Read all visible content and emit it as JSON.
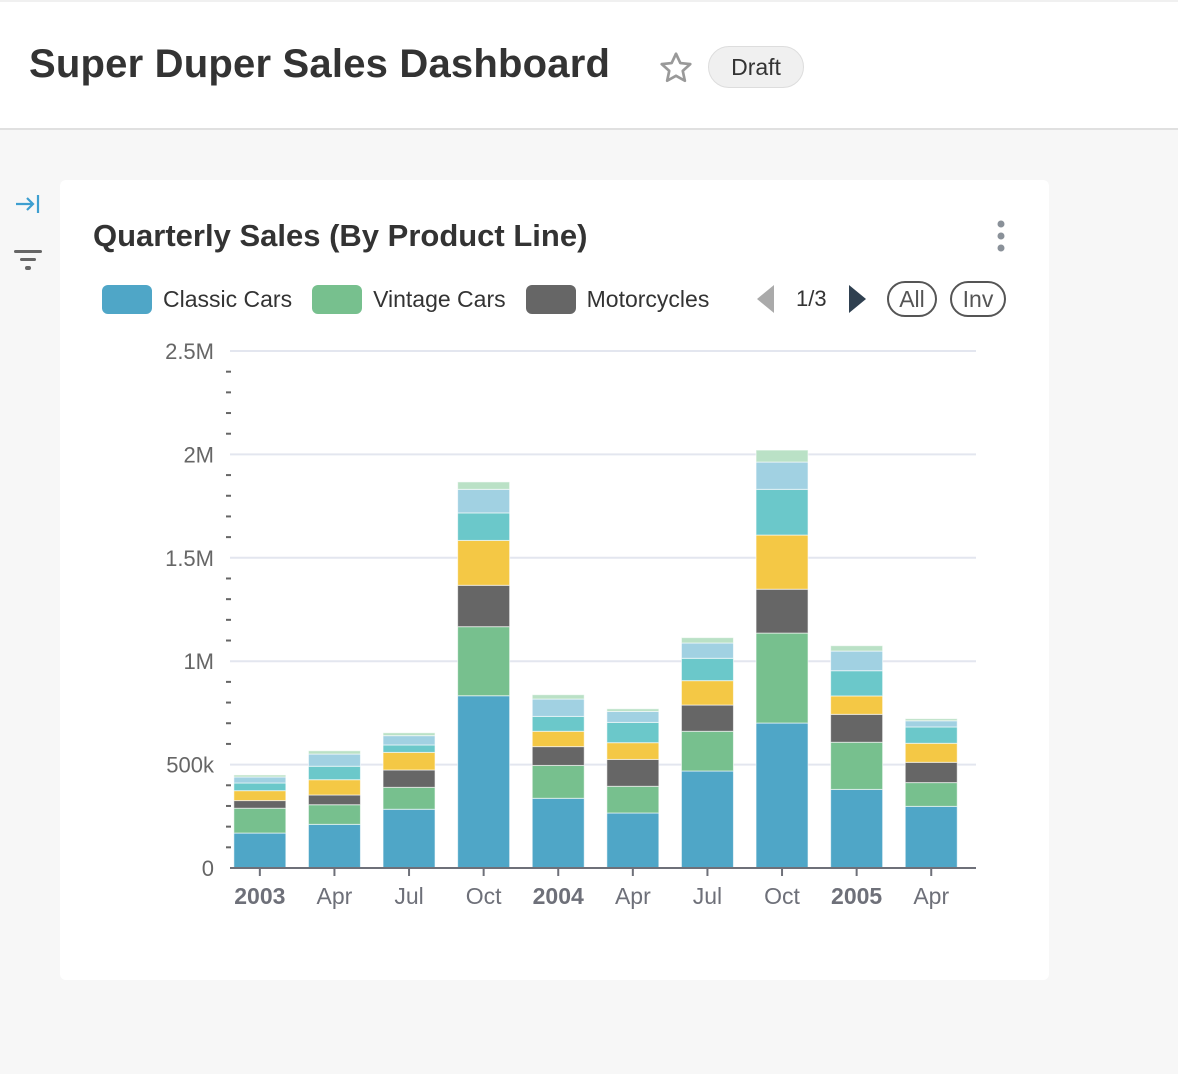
{
  "header": {
    "title": "Super Duper Sales Dashboard",
    "status_badge": "Draft",
    "star_icon": "star-outline-icon"
  },
  "sidebar": {
    "expand_icon": "expand-right-icon",
    "filter_icon": "filter-icon"
  },
  "chart_card": {
    "title": "Quarterly Sales (By Product Line)",
    "menu_icon": "kebab-menu-icon",
    "legend": {
      "items": [
        {
          "label": "Classic Cars",
          "color": "#4FA6C7"
        },
        {
          "label": "Vintage Cars",
          "color": "#77C08E"
        },
        {
          "label": "Motorcycles",
          "color": "#666666"
        }
      ],
      "page": "1/3",
      "all_label": "All",
      "inv_label": "Inv"
    }
  },
  "chart_data": {
    "type": "bar",
    "stacked": true,
    "title": "Quarterly Sales (By Product Line)",
    "xlabel": "",
    "ylabel": "",
    "categories": [
      "2003",
      "Apr",
      "Jul",
      "Oct",
      "2004",
      "Apr",
      "Jul",
      "Oct",
      "2005",
      "Apr"
    ],
    "bold_categories": [
      "2003",
      "2004",
      "2005"
    ],
    "y_ticks": [
      "0",
      "500k",
      "1M",
      "1.5M",
      "2M",
      "2.5M"
    ],
    "ylim": [
      0,
      2500000
    ],
    "grid": true,
    "legend_position": "top",
    "series": [
      {
        "name": "Classic Cars",
        "color": "#4FA6C7",
        "values": [
          169000,
          211000,
          284000,
          833000,
          337000,
          266000,
          469000,
          701000,
          380000,
          298000
        ]
      },
      {
        "name": "Vintage Cars",
        "color": "#77C08E",
        "values": [
          120000,
          95000,
          106000,
          334000,
          159000,
          129000,
          192000,
          435000,
          228000,
          115000
        ]
      },
      {
        "name": "Motorcycles",
        "color": "#666666",
        "values": [
          37000,
          47000,
          84000,
          200000,
          91000,
          130000,
          127000,
          212000,
          135000,
          98000
        ]
      },
      {
        "color": "#F4C845",
        "values": [
          48000,
          74000,
          85000,
          217000,
          74000,
          81000,
          118000,
          262000,
          89000,
          92000
        ]
      },
      {
        "color": "#6BC8CA",
        "values": [
          37000,
          65000,
          36000,
          133000,
          72000,
          98000,
          108000,
          221000,
          122000,
          79000
        ]
      },
      {
        "color": "#A1D1E2",
        "values": [
          29000,
          59000,
          45000,
          114000,
          84000,
          53000,
          74000,
          132000,
          95000,
          30000
        ]
      },
      {
        "color": "#BAE1C6",
        "values": [
          10000,
          16000,
          14000,
          36000,
          21000,
          13000,
          26000,
          58000,
          26000,
          10000
        ]
      }
    ]
  }
}
